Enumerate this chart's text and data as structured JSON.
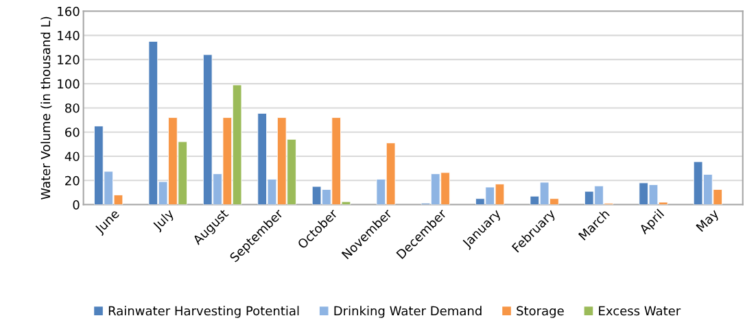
{
  "chart_data": {
    "type": "bar",
    "ylabel": "Water Volume (in thousand L)",
    "categories": [
      "June",
      "July",
      "August",
      "September",
      "October",
      "November",
      "December",
      "January",
      "February",
      "March",
      "April",
      "May"
    ],
    "series": [
      {
        "name": "Rainwater Harvesting Potential",
        "color": "#4f81bd",
        "values": [
          65,
          135,
          124,
          75.5,
          15,
          null,
          1,
          5,
          7,
          11,
          18,
          35.5
        ]
      },
      {
        "name": "Drinking Water Demand",
        "color": "#8eb4e3",
        "values": [
          27.5,
          19,
          25.5,
          21,
          12.5,
          21,
          25.5,
          14.5,
          18.5,
          15.5,
          16.5,
          25
        ]
      },
      {
        "name": "Storage",
        "color": "#f79646",
        "values": [
          8,
          72,
          72,
          72,
          72,
          51,
          26.5,
          17,
          5,
          1,
          2,
          12.5
        ]
      },
      {
        "name": "Excess Water",
        "color": "#9bbb59",
        "values": [
          null,
          52,
          99,
          54,
          2.5,
          null,
          null,
          null,
          null,
          null,
          null,
          null
        ]
      }
    ],
    "ylim": [
      0,
      160
    ],
    "yticks": [
      0,
      20,
      40,
      60,
      80,
      100,
      120,
      140,
      160
    ],
    "grid": "y",
    "legend": "bottom"
  }
}
